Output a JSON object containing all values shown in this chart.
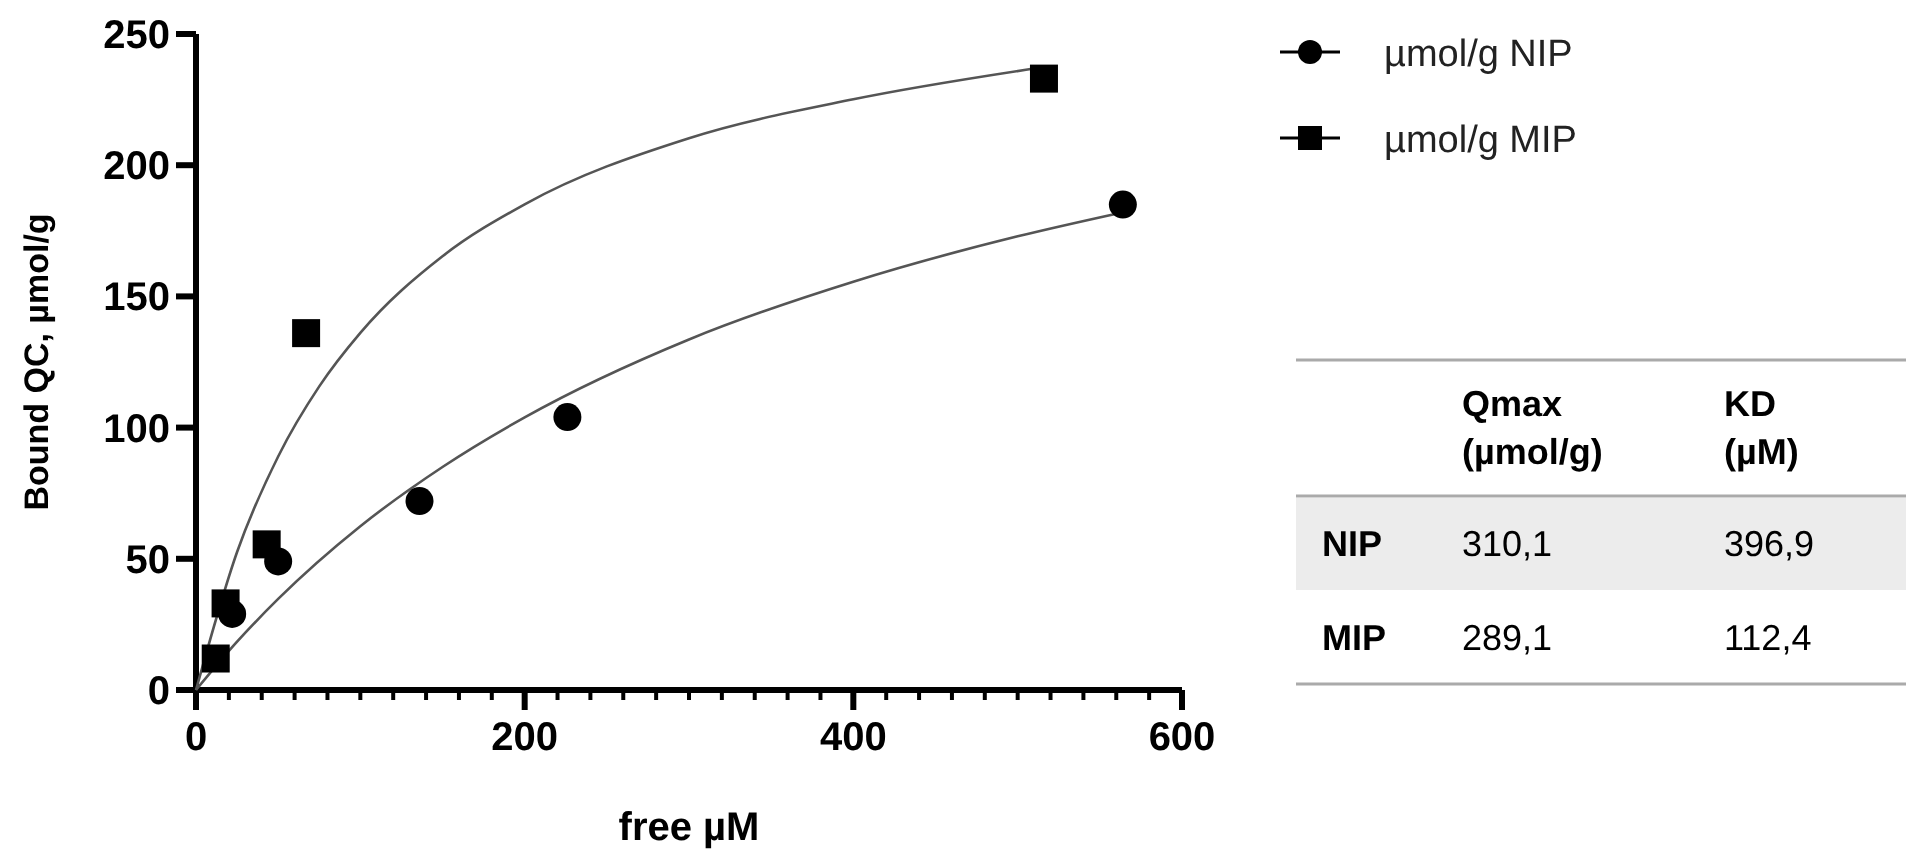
{
  "chart_data": [
    {
      "type": "scatter",
      "xlabel": "free µM",
      "ylabel": "Bound QC, µmol/g",
      "xlim": [
        0,
        600
      ],
      "ylim": [
        0,
        250
      ],
      "xticks": [
        0,
        200,
        400,
        600
      ],
      "yticks": [
        0,
        50,
        100,
        150,
        200,
        250
      ],
      "grid": false,
      "legend": "top right",
      "series": [
        {
          "name": "µmol/g NIP",
          "color": "#000000",
          "marker": "circle",
          "x": [
            22,
            50,
            136,
            226,
            564
          ],
          "values": [
            29,
            49,
            72,
            104,
            185
          ]
        },
        {
          "name": "µmol/g MIP",
          "color": "#000000",
          "marker": "square",
          "x": [
            12,
            18,
            43,
            67,
            516
          ],
          "values": [
            12,
            33,
            55.5,
            136,
            233
          ]
        },
        {
          "type": "line",
          "color": "#555555",
          "marker": "none",
          "x": [
            0,
            25,
            50,
            100,
            150,
            200,
            300,
            400,
            500,
            565
          ],
          "values": [
            0,
            18.4,
            34.7,
            62.4,
            85.0,
            103.9,
            133.6,
            155.6,
            172.9,
            182.2
          ]
        },
        {
          "type": "line",
          "color": "#555555",
          "marker": "none",
          "x": [
            0,
            25,
            50,
            75,
            100,
            150,
            200,
            300,
            400,
            515
          ],
          "values": [
            0,
            52.6,
            89.0,
            115.7,
            136.1,
            165.3,
            185.1,
            210.3,
            225.1,
            237.3
          ]
        }
      ]
    },
    {
      "type": "other",
      "categories": [
        "Qmax (µmol/g)",
        "KD (µM)"
      ],
      "y_categories": [
        "NIP",
        "MIP"
      ],
      "cell_labels": [
        [
          "310,1",
          "396,9"
        ],
        [
          "289,1",
          "112,4"
        ]
      ]
    }
  ]
}
